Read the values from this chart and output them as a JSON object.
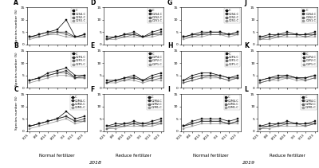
{
  "xlabels": [
    "7/25",
    "8/4",
    "8/14",
    "8/24",
    "9/3",
    "9/13",
    "9/23"
  ],
  "ylim": [
    0,
    15
  ],
  "yticks": [
    0,
    5,
    10,
    15
  ],
  "panel_labels": [
    "A",
    "B",
    "C",
    "D",
    "E",
    "F",
    "G",
    "H",
    "I",
    "J",
    "K",
    "L"
  ],
  "bottom_labels": [
    "Normal fertilizer",
    "Reduce fertilizer",
    "Normal fertilizer",
    "Reduce fertilizer"
  ],
  "year_labels": [
    "2018",
    "2019"
  ],
  "legends": [
    [
      "C",
      "C2S4-C",
      "C2S2-C",
      "C2S1-C"
    ],
    [
      "C",
      "C2P4-C",
      "C2P2-C",
      "C2P1-C"
    ],
    [
      "C",
      "C2M4-C",
      "C2M2-C",
      "C2M1-C"
    ]
  ],
  "panels": {
    "A": [
      [
        3,
        4,
        5,
        6,
        10,
        3,
        4
      ],
      [
        3,
        4,
        5,
        5,
        5,
        3,
        4
      ],
      [
        3,
        3,
        4,
        5,
        4,
        3,
        3
      ],
      [
        2,
        3,
        4,
        4,
        3,
        3,
        3
      ]
    ],
    "B": [
      [
        3,
        4,
        6,
        7,
        8,
        5,
        5
      ],
      [
        3,
        4,
        5,
        6,
        7,
        4,
        5
      ],
      [
        3,
        4,
        5,
        6,
        6,
        4,
        4
      ],
      [
        2,
        3,
        4,
        5,
        5,
        4,
        4
      ]
    ],
    "C": [
      [
        2,
        3,
        4,
        5,
        8,
        5,
        6
      ],
      [
        2,
        3,
        4,
        5,
        6,
        4,
        5
      ],
      [
        2,
        3,
        4,
        5,
        6,
        4,
        4
      ],
      [
        1,
        2,
        3,
        4,
        5,
        3,
        4
      ]
    ],
    "D": [
      [
        3,
        3,
        4,
        5,
        3,
        5,
        6
      ],
      [
        2,
        3,
        4,
        4,
        3,
        4,
        5
      ],
      [
        2,
        3,
        3,
        4,
        3,
        4,
        4
      ],
      [
        2,
        2,
        3,
        3,
        3,
        3,
        4
      ]
    ],
    "E": [
      [
        3,
        3,
        4,
        5,
        3,
        5,
        6
      ],
      [
        2,
        3,
        4,
        4,
        3,
        4,
        5
      ],
      [
        2,
        3,
        3,
        4,
        3,
        3,
        4
      ],
      [
        2,
        2,
        3,
        3,
        2,
        3,
        3
      ]
    ],
    "F": [
      [
        2,
        3,
        3,
        4,
        3,
        4,
        5
      ],
      [
        2,
        2,
        3,
        3,
        3,
        3,
        4
      ],
      [
        1,
        2,
        2,
        3,
        2,
        3,
        3
      ],
      [
        1,
        1,
        2,
        2,
        2,
        2,
        3
      ]
    ],
    "G": [
      [
        3,
        4,
        5,
        5,
        5,
        4,
        5
      ],
      [
        3,
        4,
        4,
        5,
        5,
        4,
        5
      ],
      [
        3,
        3,
        4,
        4,
        4,
        4,
        4
      ],
      [
        2,
        3,
        3,
        4,
        4,
        3,
        4
      ]
    ],
    "H": [
      [
        3,
        5,
        6,
        6,
        5,
        4,
        5
      ],
      [
        3,
        4,
        5,
        5,
        5,
        4,
        4
      ],
      [
        2,
        3,
        4,
        5,
        4,
        3,
        4
      ],
      [
        2,
        3,
        4,
        4,
        4,
        3,
        4
      ]
    ],
    "I": [
      [
        2,
        4,
        5,
        5,
        5,
        4,
        5
      ],
      [
        2,
        3,
        4,
        4,
        4,
        3,
        4
      ],
      [
        2,
        3,
        4,
        4,
        4,
        3,
        4
      ],
      [
        1,
        2,
        3,
        3,
        3,
        3,
        3
      ]
    ],
    "J": [
      [
        3,
        4,
        4,
        5,
        4,
        4,
        5
      ],
      [
        3,
        3,
        4,
        4,
        4,
        4,
        4
      ],
      [
        2,
        3,
        3,
        4,
        4,
        3,
        4
      ],
      [
        2,
        2,
        3,
        3,
        3,
        3,
        3
      ]
    ],
    "K": [
      [
        3,
        4,
        5,
        5,
        4,
        4,
        5
      ],
      [
        3,
        4,
        4,
        5,
        4,
        4,
        5
      ],
      [
        2,
        3,
        4,
        4,
        4,
        3,
        4
      ],
      [
        2,
        3,
        3,
        4,
        3,
        3,
        4
      ]
    ],
    "L": [
      [
        2,
        3,
        3,
        4,
        3,
        3,
        4
      ],
      [
        2,
        2,
        3,
        3,
        3,
        3,
        3
      ],
      [
        1,
        2,
        2,
        3,
        3,
        2,
        3
      ],
      [
        1,
        1,
        2,
        2,
        2,
        2,
        3
      ]
    ]
  },
  "ylabel": "Species number (S)",
  "background_color": "#ffffff"
}
